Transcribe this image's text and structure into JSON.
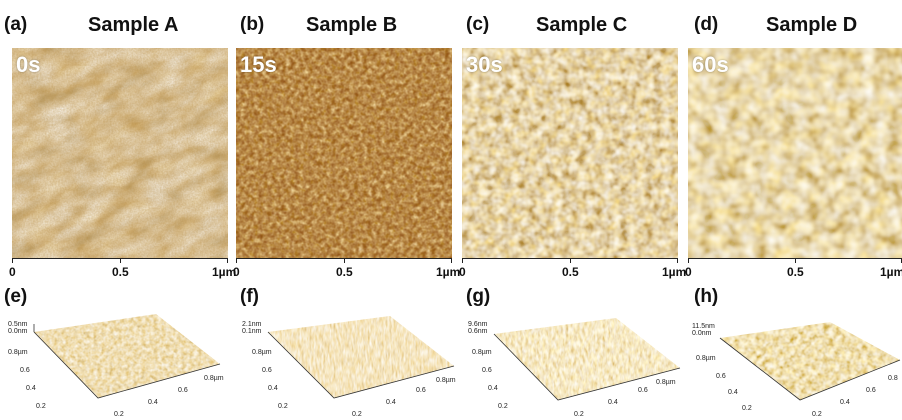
{
  "panels_top": [
    {
      "label": "(a)",
      "title": "Sample A",
      "time": "0s",
      "x0": "0",
      "xmid": "0.5",
      "xend": "1µm"
    },
    {
      "label": "(b)",
      "title": "Sample B",
      "time": "15s",
      "x0": "0",
      "xmid": "0.5",
      "xend": "1µm"
    },
    {
      "label": "(c)",
      "title": "Sample C",
      "time": "30s",
      "x0": "0",
      "xmid": "0.5",
      "xend": "1µm"
    },
    {
      "label": "(d)",
      "title": "Sample D",
      "time": "60s",
      "x0": "0",
      "xmid": "0.5",
      "xend": "1µm"
    }
  ],
  "panels_bottom": [
    {
      "label": "(e)",
      "ztop": "0.5nm",
      "zbot": "0.0nm",
      "y_ticks": [
        "0.8µm",
        "0.6",
        "0.4",
        "0.2"
      ],
      "x_ticks": [
        "0.2",
        "0.4",
        "0.6",
        "0.8µm"
      ]
    },
    {
      "label": "(f)",
      "ztop": "2.1nm",
      "zbot": "0.1nm",
      "y_ticks": [
        "0.8µm",
        "0.6",
        "0.4",
        "0.2"
      ],
      "x_ticks": [
        "0.2",
        "0.4",
        "0.6",
        "0.8µm"
      ]
    },
    {
      "label": "(g)",
      "ztop": "9.6nm",
      "zbot": "0.6nm",
      "y_ticks": [
        "0.8µm",
        "0.6",
        "0.4",
        "0.2"
      ],
      "x_ticks": [
        "0.2",
        "0.4",
        "0.6",
        "0.8µm"
      ]
    },
    {
      "label": "(h)",
      "ztop": "11.5nm",
      "zbot": "0.0nm",
      "y_ticks": [
        "0.8µm",
        "0.6",
        "0.4",
        "0.2"
      ],
      "x_ticks": [
        "0.2",
        "0.4",
        "0.6",
        "0.8"
      ]
    }
  ],
  "colors": {
    "afm_dark": "#4a2200",
    "afm_mid": "#b06a1c",
    "afm_light": "#f4d28a",
    "afm_highlight": "#fff6d8",
    "text": "#111111"
  }
}
